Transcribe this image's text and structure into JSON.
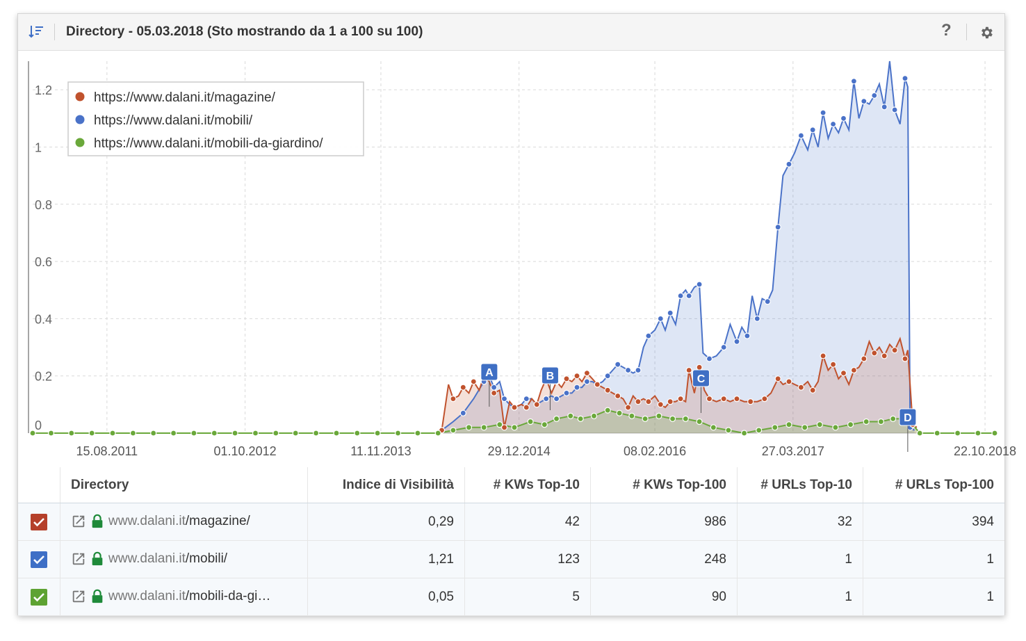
{
  "header": {
    "title": "Directory - 05.03.2018 (Sto mostrando da 1 a 100 su 100)",
    "help_label": "?",
    "sort_icon": "sort-descending-icon",
    "settings_icon": "gear-icon"
  },
  "chart_data": {
    "type": "area",
    "x_tick_labels": [
      "15.08.2011",
      "01.10.2012",
      "11.11.2013",
      "29.12.2014",
      "08.02.2016",
      "27.03.2017",
      "22.10.2018"
    ],
    "y_tick_labels": [
      "0",
      "0.2",
      "0.4",
      "0.6",
      "0.8",
      "1",
      "1.2"
    ],
    "ylim": [
      0,
      1.3
    ],
    "grid": true,
    "legend_position": "top-left",
    "series": [
      {
        "name": "https://www.dalani.it/magazine/",
        "color": "#c0522d",
        "points": [
          [
            "2014-05-12",
            0.01
          ],
          [
            "2014-06-01",
            0.17
          ],
          [
            "2014-06-15",
            0.12
          ],
          [
            "2014-07-01",
            0.13
          ],
          [
            "2014-07-15",
            0.16
          ],
          [
            "2014-08-01",
            0.14
          ],
          [
            "2014-08-15",
            0.18
          ],
          [
            "2014-09-01",
            0.15
          ],
          [
            "2014-09-15",
            0.2
          ],
          [
            "2014-10-01",
            0.18
          ],
          [
            "2014-10-15",
            0.14
          ],
          [
            "2014-11-01",
            0.15
          ],
          [
            "2014-11-15",
            0.02
          ],
          [
            "2014-12-01",
            0.11
          ],
          [
            "2014-12-15",
            0.09
          ],
          [
            "2015-01-05",
            0.1
          ],
          [
            "2015-01-20",
            0.09
          ],
          [
            "2015-02-05",
            0.12
          ],
          [
            "2015-02-20",
            0.1
          ],
          [
            "2015-03-05",
            0.15
          ],
          [
            "2015-03-20",
            0.19
          ],
          [
            "2015-04-05",
            0.14
          ],
          [
            "2015-04-20",
            0.18
          ],
          [
            "2015-05-05",
            0.16
          ],
          [
            "2015-05-20",
            0.19
          ],
          [
            "2015-06-05",
            0.18
          ],
          [
            "2015-06-20",
            0.2
          ],
          [
            "2015-07-05",
            0.18
          ],
          [
            "2015-07-20",
            0.21
          ],
          [
            "2015-08-05",
            0.19
          ],
          [
            "2015-08-20",
            0.17
          ],
          [
            "2015-09-05",
            0.16
          ],
          [
            "2015-09-20",
            0.15
          ],
          [
            "2015-10-05",
            0.14
          ],
          [
            "2015-10-20",
            0.13
          ],
          [
            "2015-11-05",
            0.12
          ],
          [
            "2015-11-20",
            0.09
          ],
          [
            "2015-12-05",
            0.13
          ],
          [
            "2015-12-20",
            0.11
          ],
          [
            "2016-01-05",
            0.12
          ],
          [
            "2016-01-20",
            0.11
          ],
          [
            "2016-02-08",
            0.13
          ],
          [
            "2016-02-25",
            0.1
          ],
          [
            "2016-03-10",
            0.09
          ],
          [
            "2016-03-25",
            0.11
          ],
          [
            "2016-04-10",
            0.11
          ],
          [
            "2016-04-25",
            0.12
          ],
          [
            "2016-05-10",
            0.11
          ],
          [
            "2016-05-20",
            0.22
          ],
          [
            "2016-06-05",
            0.14
          ],
          [
            "2016-06-20",
            0.23
          ],
          [
            "2016-07-05",
            0.15
          ],
          [
            "2016-07-20",
            0.12
          ],
          [
            "2016-08-10",
            0.11
          ],
          [
            "2016-09-01",
            0.12
          ],
          [
            "2016-09-20",
            0.11
          ],
          [
            "2016-10-10",
            0.12
          ],
          [
            "2016-11-01",
            0.11
          ],
          [
            "2016-11-20",
            0.11
          ],
          [
            "2016-12-10",
            0.11
          ],
          [
            "2017-01-01",
            0.12
          ],
          [
            "2017-01-20",
            0.14
          ],
          [
            "2017-02-10",
            0.19
          ],
          [
            "2017-02-25",
            0.17
          ],
          [
            "2017-03-15",
            0.18
          ],
          [
            "2017-04-01",
            0.17
          ],
          [
            "2017-04-20",
            0.16
          ],
          [
            "2017-05-10",
            0.18
          ],
          [
            "2017-05-25",
            0.15
          ],
          [
            "2017-06-10",
            0.18
          ],
          [
            "2017-06-25",
            0.27
          ],
          [
            "2017-07-10",
            0.22
          ],
          [
            "2017-07-25",
            0.24
          ],
          [
            "2017-08-10",
            0.19
          ],
          [
            "2017-08-25",
            0.21
          ],
          [
            "2017-09-10",
            0.17
          ],
          [
            "2017-09-25",
            0.22
          ],
          [
            "2017-10-10",
            0.23
          ],
          [
            "2017-10-25",
            0.26
          ],
          [
            "2017-11-10",
            0.32
          ],
          [
            "2017-11-25",
            0.28
          ],
          [
            "2017-12-10",
            0.3
          ],
          [
            "2017-12-25",
            0.27
          ],
          [
            "2018-01-10",
            0.31
          ],
          [
            "2018-01-25",
            0.29
          ],
          [
            "2018-02-10",
            0.33
          ],
          [
            "2018-02-25",
            0.26
          ],
          [
            "2018-03-05",
            0.29
          ],
          [
            "2018-03-20",
            0.03
          ],
          [
            "2018-04-01",
            0.02
          ]
        ]
      },
      {
        "name": "https://www.dalani.it/mobili/",
        "color": "#4a72c8",
        "points": [
          [
            "2014-05-12",
            0.01
          ],
          [
            "2014-06-15",
            0.04
          ],
          [
            "2014-07-15",
            0.07
          ],
          [
            "2014-08-15",
            0.12
          ],
          [
            "2014-09-15",
            0.18
          ],
          [
            "2014-10-01",
            0.2
          ],
          [
            "2014-10-15",
            0.16
          ],
          [
            "2014-11-01",
            0.18
          ],
          [
            "2014-11-15",
            0.12
          ],
          [
            "2014-12-01",
            0.1
          ],
          [
            "2014-12-15",
            0.09
          ],
          [
            "2015-01-05",
            0.1
          ],
          [
            "2015-01-20",
            0.12
          ],
          [
            "2015-02-05",
            0.12
          ],
          [
            "2015-02-20",
            0.1
          ],
          [
            "2015-03-05",
            0.11
          ],
          [
            "2015-03-20",
            0.12
          ],
          [
            "2015-04-05",
            0.13
          ],
          [
            "2015-04-20",
            0.12
          ],
          [
            "2015-05-05",
            0.13
          ],
          [
            "2015-05-20",
            0.14
          ],
          [
            "2015-06-05",
            0.14
          ],
          [
            "2015-06-20",
            0.16
          ],
          [
            "2015-07-05",
            0.16
          ],
          [
            "2015-07-20",
            0.18
          ],
          [
            "2015-08-05",
            0.18
          ],
          [
            "2015-08-20",
            0.17
          ],
          [
            "2015-09-05",
            0.18
          ],
          [
            "2015-09-20",
            0.2
          ],
          [
            "2015-10-05",
            0.22
          ],
          [
            "2015-10-20",
            0.24
          ],
          [
            "2015-11-05",
            0.23
          ],
          [
            "2015-11-20",
            0.22
          ],
          [
            "2015-12-05",
            0.21
          ],
          [
            "2015-12-20",
            0.22
          ],
          [
            "2016-01-05",
            0.3
          ],
          [
            "2016-01-20",
            0.34
          ],
          [
            "2016-02-08",
            0.36
          ],
          [
            "2016-02-25",
            0.4
          ],
          [
            "2016-03-10",
            0.36
          ],
          [
            "2016-03-25",
            0.42
          ],
          [
            "2016-04-10",
            0.38
          ],
          [
            "2016-04-25",
            0.48
          ],
          [
            "2016-05-10",
            0.5
          ],
          [
            "2016-05-20",
            0.48
          ],
          [
            "2016-06-05",
            0.51
          ],
          [
            "2016-06-20",
            0.52
          ],
          [
            "2016-07-01",
            0.28
          ],
          [
            "2016-07-20",
            0.26
          ],
          [
            "2016-08-10",
            0.27
          ],
          [
            "2016-09-01",
            0.3
          ],
          [
            "2016-09-20",
            0.38
          ],
          [
            "2016-10-10",
            0.32
          ],
          [
            "2016-10-25",
            0.37
          ],
          [
            "2016-11-10",
            0.34
          ],
          [
            "2016-11-25",
            0.48
          ],
          [
            "2016-12-10",
            0.4
          ],
          [
            "2016-12-25",
            0.47
          ],
          [
            "2017-01-10",
            0.46
          ],
          [
            "2017-01-25",
            0.5
          ],
          [
            "2017-02-10",
            0.72
          ],
          [
            "2017-02-25",
            0.9
          ],
          [
            "2017-03-15",
            0.94
          ],
          [
            "2017-04-01",
            0.98
          ],
          [
            "2017-04-20",
            1.04
          ],
          [
            "2017-05-10",
            0.99
          ],
          [
            "2017-05-25",
            1.06
          ],
          [
            "2017-06-10",
            1.0
          ],
          [
            "2017-06-25",
            1.12
          ],
          [
            "2017-07-10",
            1.03
          ],
          [
            "2017-07-25",
            1.08
          ],
          [
            "2017-08-10",
            1.05
          ],
          [
            "2017-08-25",
            1.1
          ],
          [
            "2017-09-10",
            1.06
          ],
          [
            "2017-09-25",
            1.23
          ],
          [
            "2017-10-10",
            1.1
          ],
          [
            "2017-10-25",
            1.16
          ],
          [
            "2017-11-10",
            1.15
          ],
          [
            "2017-11-25",
            1.18
          ],
          [
            "2017-12-10",
            1.22
          ],
          [
            "2017-12-25",
            1.14
          ],
          [
            "2018-01-10",
            1.3
          ],
          [
            "2018-01-25",
            1.13
          ],
          [
            "2018-02-10",
            1.08
          ],
          [
            "2018-02-25",
            1.24
          ],
          [
            "2018-03-05",
            1.21
          ],
          [
            "2018-03-12",
            0.02
          ],
          [
            "2018-03-25",
            0.01
          ]
        ]
      },
      {
        "name": "https://www.dalani.it/mobili-da-giardino/",
        "color": "#6aa83a",
        "points": [
          [
            "2011-01-05",
            0.0
          ],
          [
            "2011-03-01",
            0.0
          ],
          [
            "2011-05-01",
            0.0
          ],
          [
            "2011-07-01",
            0.0
          ],
          [
            "2011-09-01",
            0.0
          ],
          [
            "2011-11-01",
            0.0
          ],
          [
            "2012-01-01",
            0.0
          ],
          [
            "2012-03-01",
            0.0
          ],
          [
            "2012-05-01",
            0.0
          ],
          [
            "2012-07-01",
            0.0
          ],
          [
            "2012-09-01",
            0.0
          ],
          [
            "2012-11-01",
            0.0
          ],
          [
            "2013-01-01",
            0.0
          ],
          [
            "2013-03-01",
            0.0
          ],
          [
            "2013-05-01",
            0.0
          ],
          [
            "2013-07-01",
            0.0
          ],
          [
            "2013-09-01",
            0.0
          ],
          [
            "2013-11-01",
            0.0
          ],
          [
            "2014-01-01",
            0.0
          ],
          [
            "2014-03-01",
            0.0
          ],
          [
            "2014-05-01",
            0.0
          ],
          [
            "2014-06-15",
            0.01
          ],
          [
            "2014-08-01",
            0.02
          ],
          [
            "2014-09-15",
            0.02
          ],
          [
            "2014-11-01",
            0.03
          ],
          [
            "2014-12-15",
            0.02
          ],
          [
            "2015-02-01",
            0.04
          ],
          [
            "2015-03-15",
            0.03
          ],
          [
            "2015-04-20",
            0.05
          ],
          [
            "2015-06-01",
            0.06
          ],
          [
            "2015-07-01",
            0.05
          ],
          [
            "2015-08-10",
            0.06
          ],
          [
            "2015-09-20",
            0.08
          ],
          [
            "2015-10-25",
            0.07
          ],
          [
            "2015-12-01",
            0.06
          ],
          [
            "2016-01-10",
            0.05
          ],
          [
            "2016-02-20",
            0.06
          ],
          [
            "2016-04-01",
            0.05
          ],
          [
            "2016-05-10",
            0.05
          ],
          [
            "2016-06-20",
            0.04
          ],
          [
            "2016-08-01",
            0.02
          ],
          [
            "2016-09-15",
            0.01
          ],
          [
            "2016-11-01",
            0.0
          ],
          [
            "2016-12-15",
            0.01
          ],
          [
            "2017-02-01",
            0.02
          ],
          [
            "2017-03-15",
            0.03
          ],
          [
            "2017-05-01",
            0.02
          ],
          [
            "2017-06-15",
            0.03
          ],
          [
            "2017-08-01",
            0.02
          ],
          [
            "2017-09-15",
            0.03
          ],
          [
            "2017-11-01",
            0.04
          ],
          [
            "2017-12-15",
            0.04
          ],
          [
            "2018-01-20",
            0.05
          ],
          [
            "2018-03-05",
            0.05
          ],
          [
            "2018-04-10",
            0.0
          ],
          [
            "2018-06-01",
            0.0
          ],
          [
            "2018-08-01",
            0.0
          ],
          [
            "2018-10-01",
            0.0
          ],
          [
            "2018-11-20",
            0.0
          ]
        ]
      }
    ],
    "annotations": [
      {
        "label": "A",
        "date": "2014-10-01"
      },
      {
        "label": "B",
        "date": "2015-04-01"
      },
      {
        "label": "C",
        "date": "2016-06-25"
      },
      {
        "label": "D",
        "date": "2018-03-05"
      }
    ]
  },
  "table": {
    "columns": [
      "Directory",
      "Indice di Visibilità",
      "# KWs Top-10",
      "# KWs Top-100",
      "# URLs Top-10",
      "# URLs Top-100"
    ],
    "rows": [
      {
        "domain": "www.dalani.it",
        "path": "/magazine/",
        "visibility": "0,29",
        "kw10": "42",
        "kw100": "986",
        "url10": "32",
        "url100": "394",
        "color": "#b5402a"
      },
      {
        "domain": "www.dalani.it",
        "path": "/mobili/",
        "visibility": "1,21",
        "kw10": "123",
        "kw100": "248",
        "url10": "1",
        "url100": "1",
        "color": "#3e6fc6"
      },
      {
        "domain": "www.dalani.it",
        "path": "/mobili-da-gi…",
        "visibility": "0,05",
        "kw10": "5",
        "kw100": "90",
        "url10": "1",
        "url100": "1",
        "color": "#5da232"
      }
    ]
  }
}
